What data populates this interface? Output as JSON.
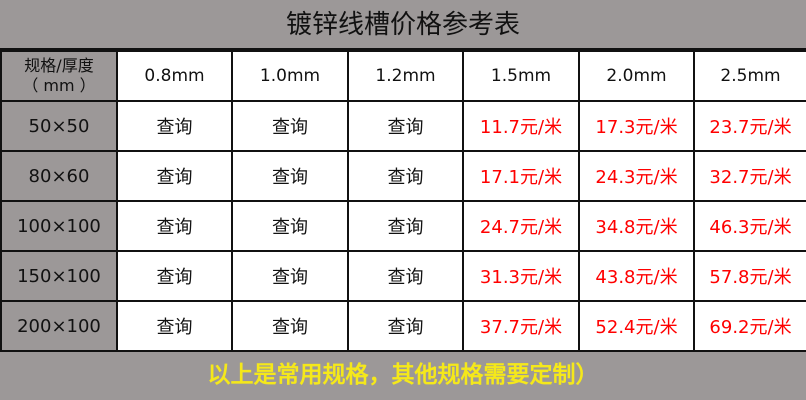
{
  "title": "镀锌线槽价格参考表",
  "corner_label_line1": "规格/厚度",
  "corner_label_line2": "（ mm ）",
  "thicknesses": [
    "0.8mm",
    "1.0mm",
    "1.2mm",
    "1.5mm",
    "2.0mm",
    "2.5mm"
  ],
  "rows": [
    {
      "spec": "50×50",
      "cells": [
        "查询",
        "查询",
        "查询",
        "11.7元/米",
        "17.3元/米",
        "23.7元/米"
      ]
    },
    {
      "spec": "80×60",
      "cells": [
        "查询",
        "查询",
        "查询",
        "17.1元/米",
        "24.3元/米",
        "32.7元/米"
      ]
    },
    {
      "spec": "100×100",
      "cells": [
        "查询",
        "查询",
        "查询",
        "24.7元/米",
        "34.8元/米",
        "46.3元/米"
      ]
    },
    {
      "spec": "150×100",
      "cells": [
        "查询",
        "查询",
        "查询",
        "31.3元/米",
        "43.8元/米",
        "57.8元/米"
      ]
    },
    {
      "spec": "200×100",
      "cells": [
        "查询",
        "查询",
        "查询",
        "37.7元/米",
        "52.4元/米",
        "69.2元/米"
      ]
    }
  ],
  "footer": "以上是常用规格，其他规格需要定制）",
  "colors": {
    "background": "#9c9898",
    "price": "#ff0000",
    "footer": "#f5e81a"
  }
}
